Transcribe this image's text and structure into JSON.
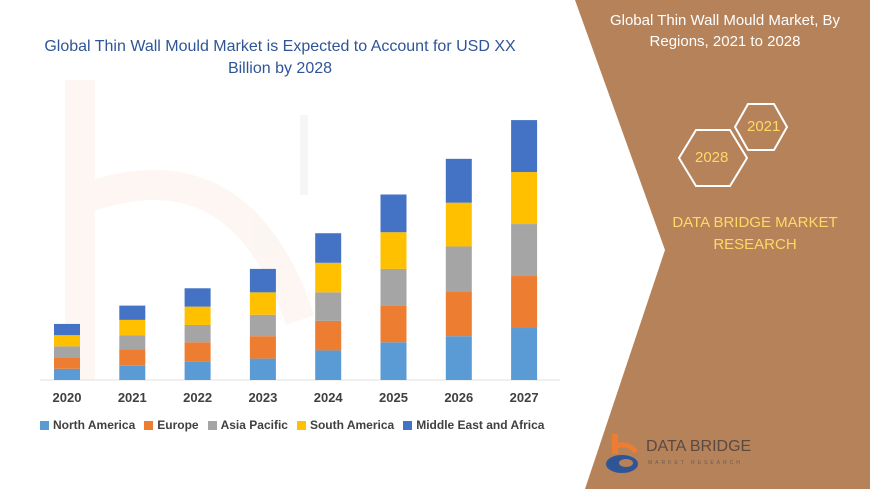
{
  "left_title": "Global Thin Wall Mould Market is Expected to Account for USD XX Billion by 2028",
  "right_panel": {
    "title": "Global Thin Wall Mould Market, By Regions, 2021 to 2028",
    "hex_1": "2021",
    "hex_2": "2028",
    "brand": "DATA BRIDGE MARKET RESEARCH",
    "logo_text": "DATA BRIDGE",
    "logo_sub": "MARKET RESEARCH",
    "bg_color": "#b5825a"
  },
  "chart_data": {
    "type": "bar",
    "stacked": true,
    "title": "Global Thin Wall Mould Market is Expected to Account for USD XX Billion by 2028",
    "xlabel": "",
    "ylabel": "",
    "grid": false,
    "legend_position": "bottom",
    "ylim": [
      0,
      260
    ],
    "categories": [
      "2020",
      "2021",
      "2022",
      "2023",
      "2024",
      "2025",
      "2026",
      "2027"
    ],
    "series": [
      {
        "name": "North America",
        "color": "#5b9bd5",
        "values": [
          11,
          14,
          18,
          21,
          29,
          37,
          43,
          51
        ]
      },
      {
        "name": "Europe",
        "color": "#ed7d31",
        "values": [
          11,
          16,
          19,
          22,
          29,
          36,
          44,
          51
        ]
      },
      {
        "name": "Asia Pacific",
        "color": "#a5a5a5",
        "values": [
          11,
          14,
          17,
          21,
          28,
          36,
          44,
          51
        ]
      },
      {
        "name": "South America",
        "color": "#ffc000",
        "values": [
          11,
          15,
          18,
          22,
          29,
          36,
          43,
          51
        ]
      },
      {
        "name": "Middle East and Africa",
        "color": "#4472c4",
        "values": [
          11,
          14,
          18,
          23,
          29,
          37,
          43,
          51
        ]
      }
    ]
  }
}
